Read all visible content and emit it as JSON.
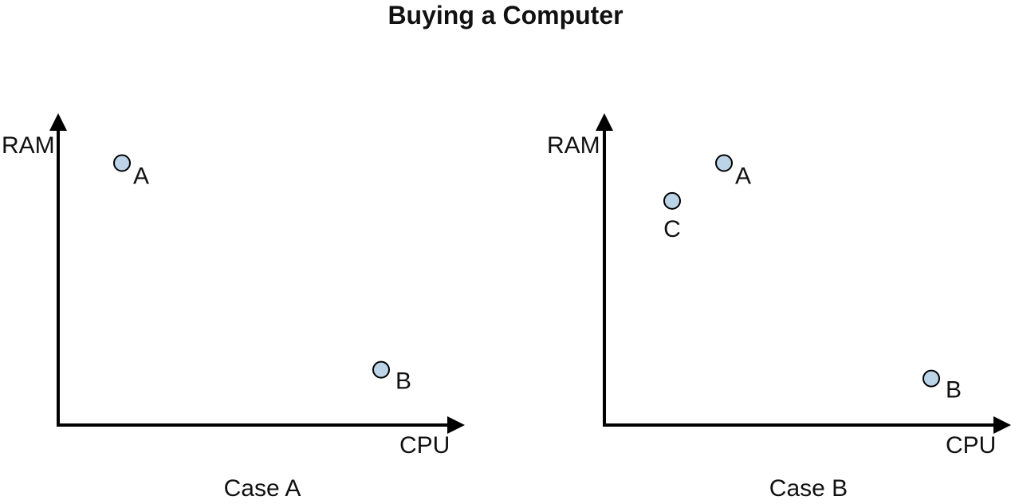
{
  "title": "Buying a Computer",
  "colors": {
    "point_fill": "#bcd4e8",
    "stroke": "#000000"
  },
  "panels": [
    {
      "caption": "Case A",
      "x_axis_label": "CPU",
      "y_axis_label": "RAM",
      "points": [
        {
          "label": "A",
          "cpu": 0.16,
          "ram": 0.9
        },
        {
          "label": "B",
          "cpu": 0.81,
          "ram": 0.19
        }
      ]
    },
    {
      "caption": "Case B",
      "x_axis_label": "CPU",
      "y_axis_label": "RAM",
      "points": [
        {
          "label": "A",
          "cpu": 0.3,
          "ram": 0.9
        },
        {
          "label": "C",
          "cpu": 0.17,
          "ram": 0.77
        },
        {
          "label": "B",
          "cpu": 0.82,
          "ram": 0.16
        }
      ]
    }
  ]
}
